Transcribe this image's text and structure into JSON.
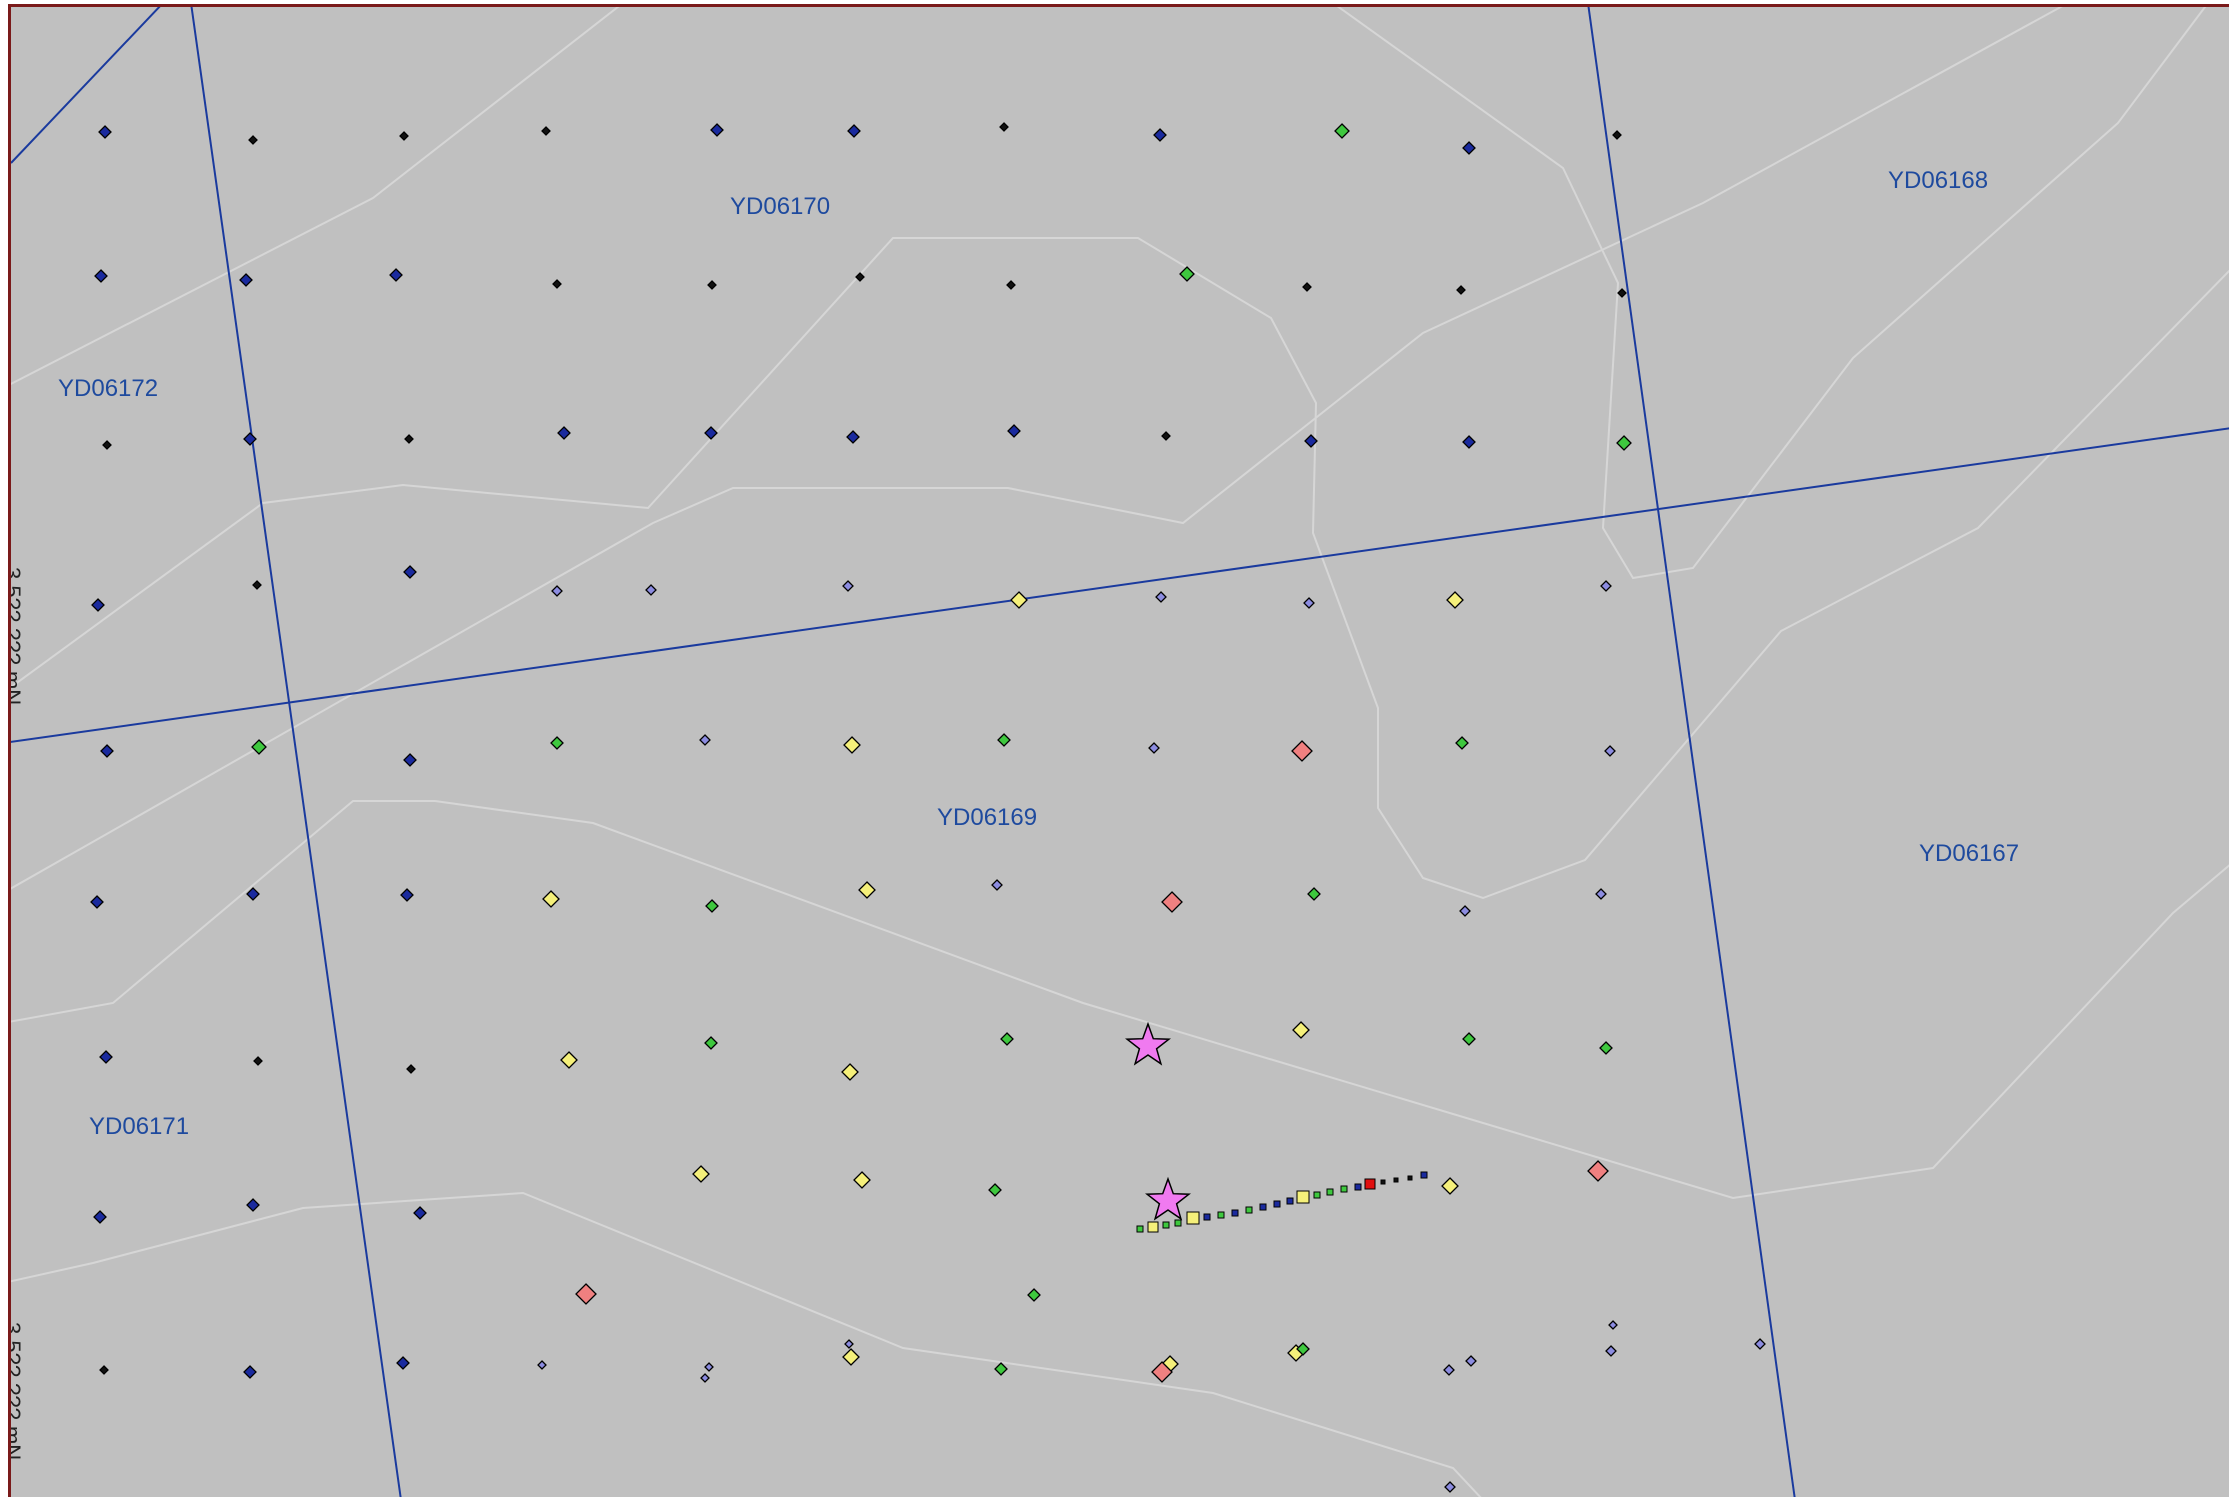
{
  "map": {
    "background_color": "#c0c0c0",
    "frame_color": "#7a1a1a",
    "grid_line_color": "#1a3a9e",
    "contour_color": "#d6d6d6",
    "axis_labels": [
      "3,5??,??? mN",
      "3,5??,??? mN"
    ],
    "block_labels": [
      "YD06170",
      "YD06168",
      "YD06172",
      "YD06169",
      "YD06167",
      "YD06171"
    ]
  },
  "symbols": {
    "legend_colors": {
      "navy": "#1a2a9e",
      "black": "#111111",
      "green": "#3ec83e",
      "lavender": "#8c8ce0",
      "yellow": "#f5f07a",
      "salmon": "#f08080",
      "red": "#e01010",
      "magenta": "#f07af0"
    },
    "icon_names": [
      "diamond-icon",
      "star-icon",
      "square-icon"
    ]
  }
}
